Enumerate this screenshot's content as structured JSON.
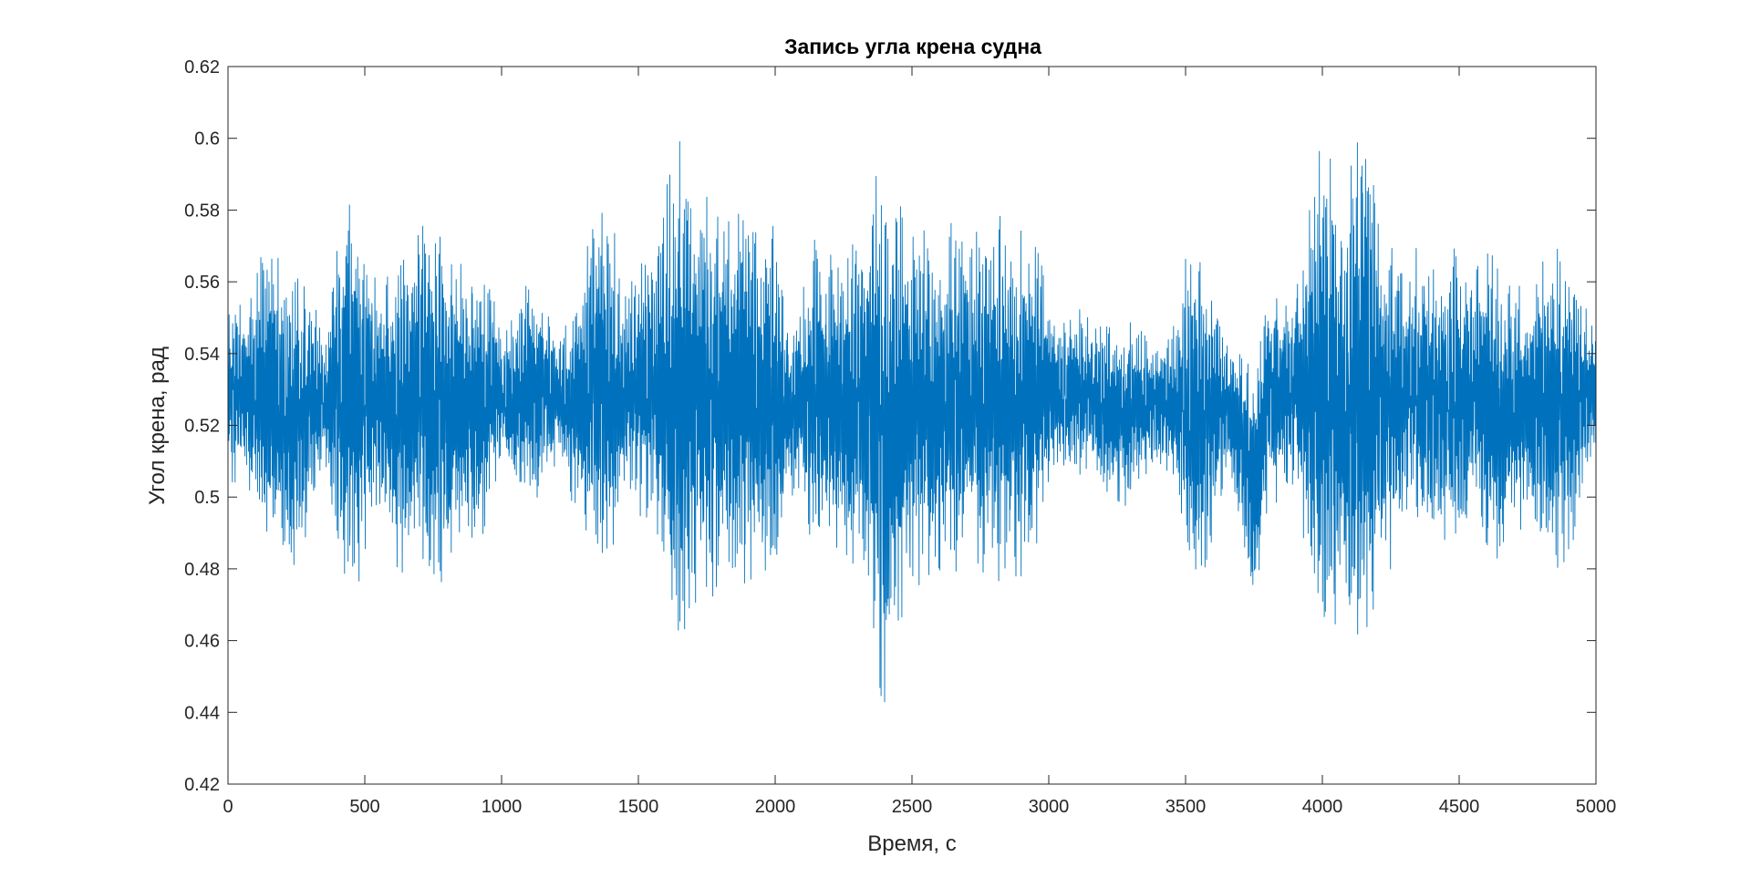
{
  "chart_data": {
    "type": "line",
    "title": "Запись угла крена судна",
    "xlabel": "Время, с",
    "ylabel": "Угол крена, рад",
    "xlim": [
      0,
      5000
    ],
    "ylim": [
      0.42,
      0.62
    ],
    "xticks": [
      0,
      500,
      1000,
      1500,
      2000,
      2500,
      3000,
      3500,
      4000,
      4500,
      5000
    ],
    "xtick_labels": [
      "0",
      "500",
      "1000",
      "1500",
      "2000",
      "2500",
      "3000",
      "3500",
      "4000",
      "4500",
      "5000"
    ],
    "yticks": [
      0.42,
      0.44,
      0.46,
      0.48,
      0.5,
      0.52,
      0.54,
      0.56,
      0.58,
      0.6,
      0.62
    ],
    "ytick_labels": [
      "0.42",
      "0.44",
      "0.46",
      "0.48",
      "0.5",
      "0.52",
      "0.54",
      "0.56",
      "0.58",
      "0.6",
      "0.62"
    ],
    "grid": false,
    "legend": false,
    "line_color": "#0072BD",
    "series": [
      {
        "mean": 0.53,
        "envelope": {
          "x": [
            0,
            50,
            100,
            150,
            200,
            250,
            300,
            350,
            400,
            450,
            500,
            550,
            600,
            650,
            700,
            750,
            800,
            850,
            900,
            950,
            1000,
            1050,
            1100,
            1150,
            1200,
            1250,
            1300,
            1350,
            1400,
            1450,
            1500,
            1550,
            1600,
            1650,
            1700,
            1750,
            1800,
            1850,
            1900,
            1950,
            2000,
            2050,
            2100,
            2150,
            2200,
            2250,
            2300,
            2350,
            2400,
            2450,
            2500,
            2550,
            2600,
            2650,
            2700,
            2750,
            2800,
            2850,
            2900,
            2950,
            3000,
            3050,
            3100,
            3150,
            3200,
            3250,
            3300,
            3350,
            3400,
            3450,
            3500,
            3550,
            3600,
            3650,
            3700,
            3750,
            3800,
            3850,
            3900,
            3950,
            4000,
            4050,
            4100,
            4150,
            4200,
            4250,
            4300,
            4350,
            4400,
            4450,
            4500,
            4550,
            4600,
            4650,
            4700,
            4750,
            4800,
            4850,
            4900,
            4950,
            5000
          ],
          "max": [
            0.557,
            0.553,
            0.56,
            0.577,
            0.562,
            0.566,
            0.56,
            0.542,
            0.572,
            0.589,
            0.57,
            0.558,
            0.566,
            0.575,
            0.577,
            0.575,
            0.57,
            0.568,
            0.563,
            0.564,
            0.547,
            0.55,
            0.565,
            0.558,
            0.545,
            0.55,
            0.564,
            0.585,
            0.58,
            0.555,
            0.57,
            0.565,
            0.585,
            0.606,
            0.585,
            0.59,
            0.578,
            0.585,
            0.585,
            0.578,
            0.575,
            0.548,
            0.56,
            0.574,
            0.568,
            0.575,
            0.575,
            0.59,
            0.592,
            0.588,
            0.576,
            0.574,
            0.57,
            0.58,
            0.568,
            0.578,
            0.58,
            0.576,
            0.575,
            0.575,
            0.553,
            0.548,
            0.552,
            0.553,
            0.548,
            0.55,
            0.55,
            0.545,
            0.543,
            0.548,
            0.568,
            0.575,
            0.565,
            0.542,
            0.545,
            0.535,
            0.56,
            0.557,
            0.56,
            0.582,
            0.607,
            0.585,
            0.595,
            0.611,
            0.58,
            0.575,
            0.565,
            0.57,
            0.563,
            0.566,
            0.575,
            0.56,
            0.572,
            0.566,
            0.558,
            0.56,
            0.565,
            0.57,
            0.565,
            0.557,
            0.55
          ],
          "min": [
            0.5,
            0.508,
            0.495,
            0.478,
            0.486,
            0.47,
            0.493,
            0.508,
            0.49,
            0.465,
            0.485,
            0.5,
            0.482,
            0.478,
            0.48,
            0.474,
            0.478,
            0.482,
            0.486,
            0.492,
            0.51,
            0.5,
            0.496,
            0.5,
            0.51,
            0.5,
            0.492,
            0.478,
            0.48,
            0.5,
            0.492,
            0.496,
            0.47,
            0.448,
            0.47,
            0.468,
            0.478,
            0.472,
            0.474,
            0.476,
            0.478,
            0.5,
            0.496,
            0.48,
            0.484,
            0.476,
            0.482,
            0.47,
            0.435,
            0.458,
            0.475,
            0.476,
            0.48,
            0.472,
            0.486,
            0.474,
            0.476,
            0.478,
            0.478,
            0.484,
            0.505,
            0.508,
            0.506,
            0.505,
            0.502,
            0.496,
            0.498,
            0.506,
            0.51,
            0.506,
            0.48,
            0.474,
            0.486,
            0.508,
            0.49,
            0.467,
            0.496,
            0.5,
            0.5,
            0.474,
            0.459,
            0.465,
            0.452,
            0.445,
            0.478,
            0.48,
            0.492,
            0.486,
            0.49,
            0.488,
            0.474,
            0.498,
            0.478,
            0.48,
            0.492,
            0.49,
            0.486,
            0.48,
            0.482,
            0.5,
            0.508
          ]
        }
      }
    ]
  }
}
